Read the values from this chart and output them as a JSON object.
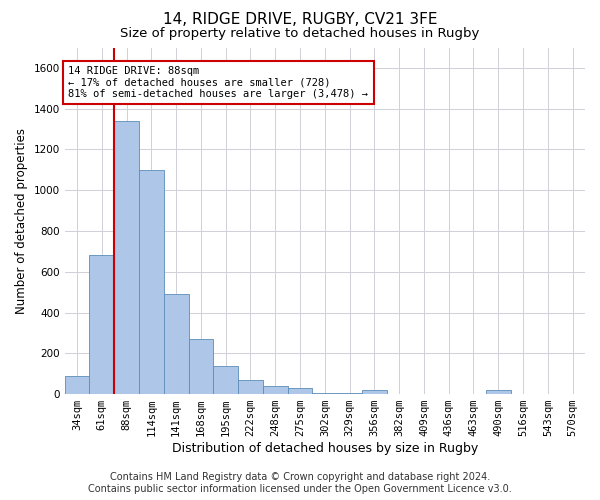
{
  "title": "14, RIDGE DRIVE, RUGBY, CV21 3FE",
  "subtitle": "Size of property relative to detached houses in Rugby",
  "xlabel": "Distribution of detached houses by size in Rugby",
  "ylabel": "Number of detached properties",
  "categories": [
    "34sqm",
    "61sqm",
    "88sqm",
    "114sqm",
    "141sqm",
    "168sqm",
    "195sqm",
    "222sqm",
    "248sqm",
    "275sqm",
    "302sqm",
    "329sqm",
    "356sqm",
    "382sqm",
    "409sqm",
    "436sqm",
    "463sqm",
    "490sqm",
    "516sqm",
    "543sqm",
    "570sqm"
  ],
  "values": [
    90,
    680,
    1340,
    1100,
    490,
    270,
    140,
    70,
    40,
    30,
    5,
    5,
    20,
    0,
    0,
    0,
    0,
    20,
    0,
    0,
    0
  ],
  "bar_color": "#aec6e8",
  "bar_edge_color": "#5b8db8",
  "highlight_index": 2,
  "highlight_color": "#cc0000",
  "ylim": [
    0,
    1700
  ],
  "yticks": [
    0,
    200,
    400,
    600,
    800,
    1000,
    1200,
    1400,
    1600
  ],
  "annotation_line1": "14 RIDGE DRIVE: 88sqm",
  "annotation_line2": "← 17% of detached houses are smaller (728)",
  "annotation_line3": "81% of semi-detached houses are larger (3,478) →",
  "annotation_box_color": "#ffffff",
  "annotation_box_edge": "#cc0000",
  "footer_line1": "Contains HM Land Registry data © Crown copyright and database right 2024.",
  "footer_line2": "Contains public sector information licensed under the Open Government Licence v3.0.",
  "grid_color": "#d0d0d8",
  "background_color": "#ffffff",
  "title_fontsize": 11,
  "subtitle_fontsize": 9.5,
  "ylabel_fontsize": 8.5,
  "xlabel_fontsize": 9,
  "tick_fontsize": 7.5,
  "annot_fontsize": 7.5,
  "footer_fontsize": 7
}
